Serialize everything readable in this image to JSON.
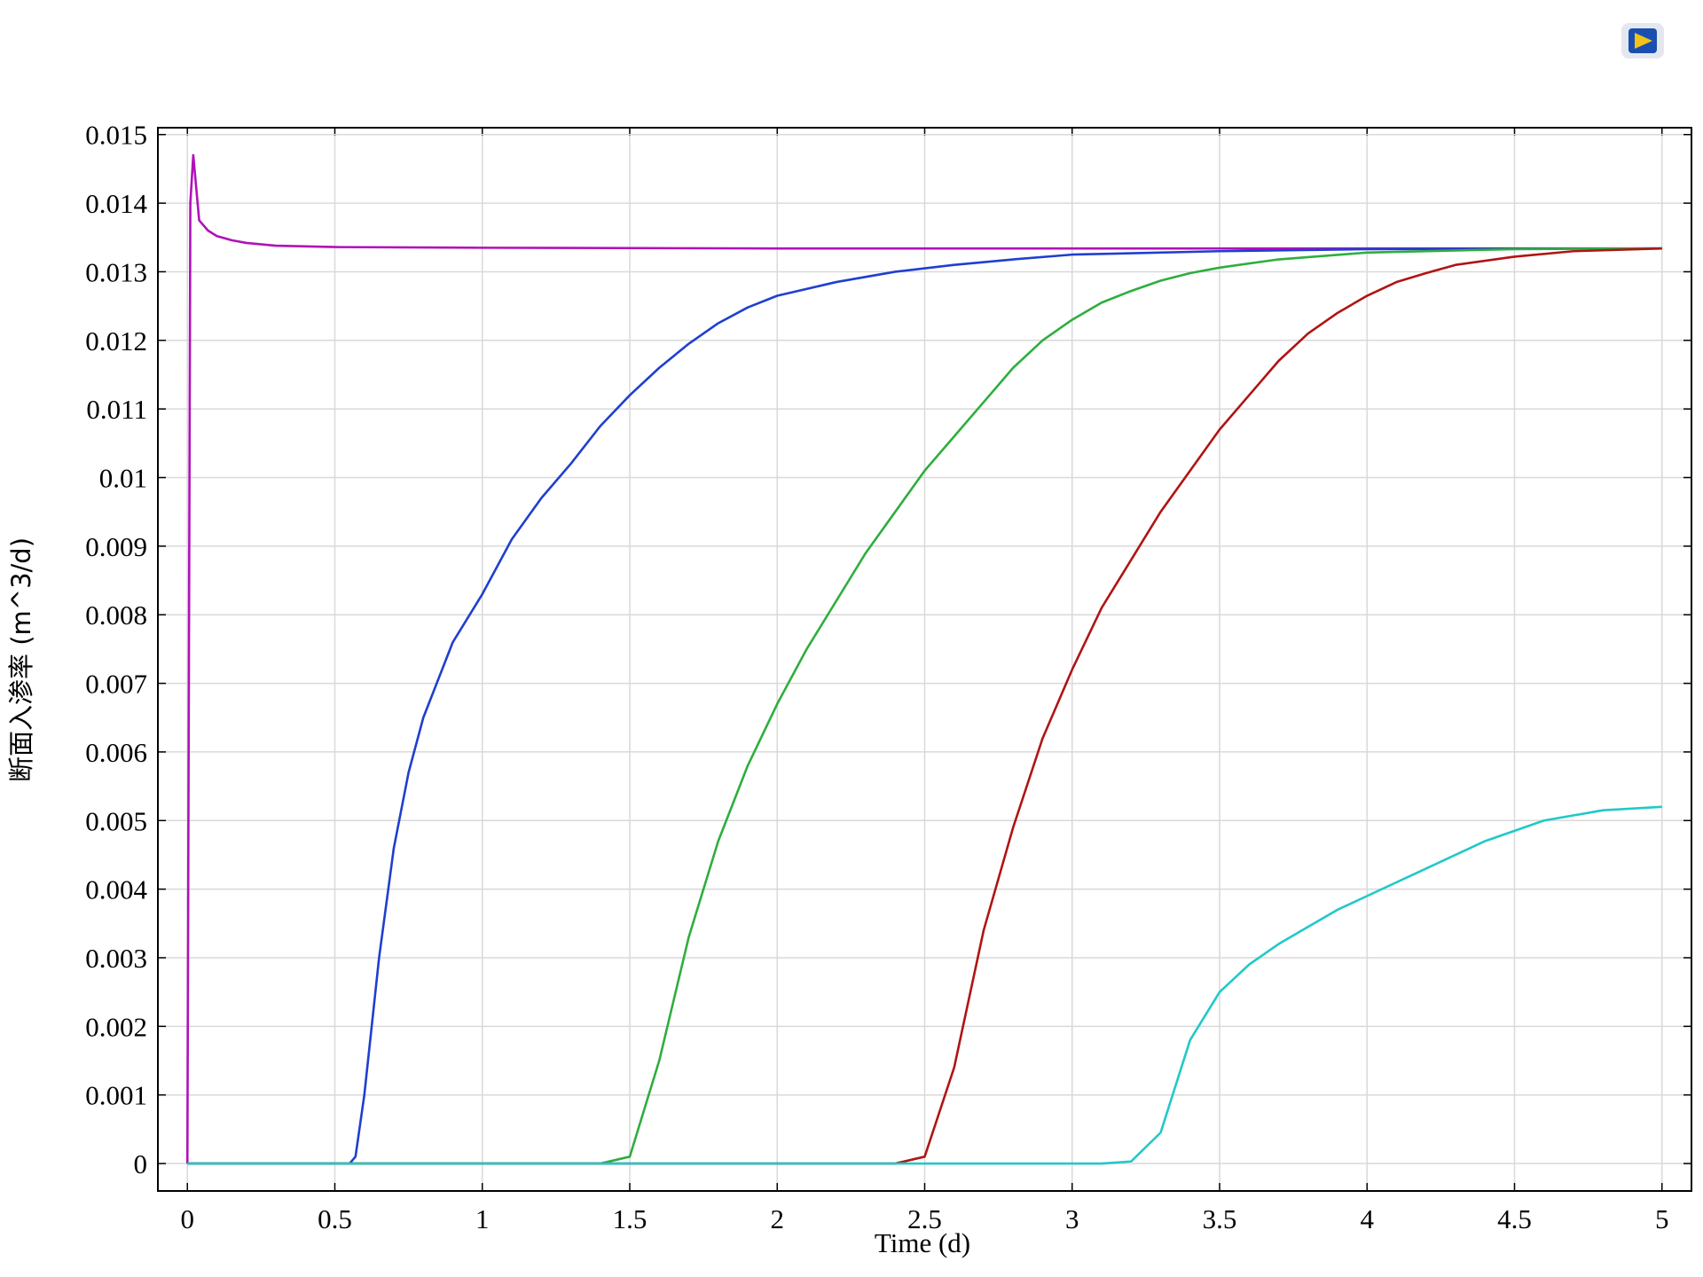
{
  "chart_data": {
    "type": "line",
    "x_label": "Time (d)",
    "y_label": "断面入渗率 (m^3/d)",
    "xlim": [
      -0.1,
      5.1
    ],
    "ylim": [
      -0.0004,
      0.0151
    ],
    "xticks": [
      0,
      0.5,
      1,
      1.5,
      2,
      2.5,
      3,
      3.5,
      4,
      4.5,
      5
    ],
    "yticks": [
      0,
      0.001,
      0.002,
      0.003,
      0.004,
      0.005,
      0.006,
      0.007,
      0.008,
      0.009,
      0.01,
      0.011,
      0.012,
      0.013,
      0.014,
      0.015
    ],
    "grid": true,
    "series": [
      {
        "color": "#b012b8",
        "x": [
          0,
          0.01,
          0.02,
          0.04,
          0.07,
          0.1,
          0.15,
          0.2,
          0.3,
          0.5,
          1,
          2,
          3,
          4,
          5
        ],
        "values": [
          0,
          0.014,
          0.0147,
          0.01375,
          0.0136,
          0.01352,
          0.01346,
          0.01342,
          0.01338,
          0.01336,
          0.01335,
          0.01334,
          0.01334,
          0.01334,
          0.01334
        ]
      },
      {
        "color": "#1f3fcf",
        "x": [
          0,
          0.5,
          0.55,
          0.57,
          0.6,
          0.65,
          0.7,
          0.75,
          0.8,
          0.9,
          1,
          1.1,
          1.2,
          1.3,
          1.4,
          1.5,
          1.6,
          1.7,
          1.8,
          1.9,
          2,
          2.2,
          2.4,
          2.6,
          2.8,
          3,
          3.5,
          4,
          5
        ],
        "values": [
          0,
          0,
          0,
          0.0001,
          0.001,
          0.003,
          0.0046,
          0.0057,
          0.0065,
          0.0076,
          0.0083,
          0.0091,
          0.0097,
          0.0102,
          0.01075,
          0.0112,
          0.0116,
          0.01195,
          0.01225,
          0.01248,
          0.01265,
          0.01285,
          0.013,
          0.0131,
          0.01318,
          0.01325,
          0.0133,
          0.01333,
          0.01334
        ]
      },
      {
        "color": "#2eae3e",
        "x": [
          0,
          1.4,
          1.5,
          1.6,
          1.7,
          1.8,
          1.9,
          2,
          2.1,
          2.2,
          2.3,
          2.4,
          2.5,
          2.6,
          2.7,
          2.8,
          2.9,
          3,
          3.1,
          3.2,
          3.3,
          3.4,
          3.5,
          3.7,
          4,
          4.5,
          5
        ],
        "values": [
          0,
          0,
          0.0001,
          0.0015,
          0.0033,
          0.0047,
          0.0058,
          0.0067,
          0.0075,
          0.0082,
          0.0089,
          0.0095,
          0.0101,
          0.0106,
          0.0111,
          0.0116,
          0.012,
          0.0123,
          0.01255,
          0.01272,
          0.01287,
          0.01298,
          0.01306,
          0.01318,
          0.01328,
          0.01333,
          0.01334
        ]
      },
      {
        "color": "#b01414",
        "x": [
          0,
          2.4,
          2.5,
          2.6,
          2.7,
          2.8,
          2.9,
          3,
          3.1,
          3.2,
          3.3,
          3.4,
          3.5,
          3.6,
          3.7,
          3.8,
          3.9,
          4,
          4.1,
          4.2,
          4.3,
          4.5,
          4.7,
          5
        ],
        "values": [
          0,
          0,
          0.0001,
          0.0014,
          0.0034,
          0.0049,
          0.0062,
          0.0072,
          0.0081,
          0.0088,
          0.0095,
          0.0101,
          0.0107,
          0.0112,
          0.0117,
          0.0121,
          0.0124,
          0.01265,
          0.01285,
          0.01298,
          0.0131,
          0.01322,
          0.0133,
          0.01334
        ]
      },
      {
        "color": "#22c8c8",
        "x": [
          0,
          3.1,
          3.2,
          3.3,
          3.4,
          3.5,
          3.6,
          3.7,
          3.8,
          3.9,
          4,
          4.2,
          4.4,
          4.6,
          4.8,
          5
        ],
        "values": [
          0,
          0,
          3e-05,
          0.00045,
          0.0018,
          0.0025,
          0.0029,
          0.0032,
          0.00345,
          0.0037,
          0.0039,
          0.0043,
          0.0047,
          0.005,
          0.00515,
          0.0052
        ]
      }
    ]
  }
}
